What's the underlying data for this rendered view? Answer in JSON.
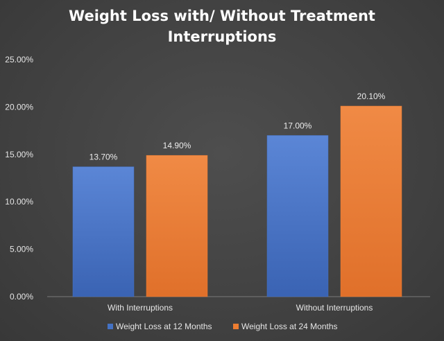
{
  "chart_data": {
    "type": "bar",
    "title_lines": [
      "Weight Loss with/ Without Treatment",
      "Interruptions"
    ],
    "categories": [
      "With Interruptions",
      "Without Interruptions"
    ],
    "series": [
      {
        "name": "Weight Loss at 12 Months",
        "values": [
          13.7,
          17.0
        ],
        "labels": [
          "13.70%",
          "17.00%"
        ],
        "color": "#4472C4"
      },
      {
        "name": "Weight Loss at 24 Months",
        "values": [
          14.9,
          20.1
        ],
        "labels": [
          "14.90%",
          "20.10%"
        ],
        "color": "#ED7D31"
      }
    ],
    "ylim": [
      0,
      25
    ],
    "yticks": [
      0,
      5,
      10,
      15,
      20,
      25
    ],
    "ytick_labels": [
      "0.00%",
      "5.00%",
      "10.00%",
      "15.00%",
      "20.00%",
      "25.00%"
    ],
    "grid": false,
    "legend_position": "bottom",
    "background_color": "#404040"
  }
}
